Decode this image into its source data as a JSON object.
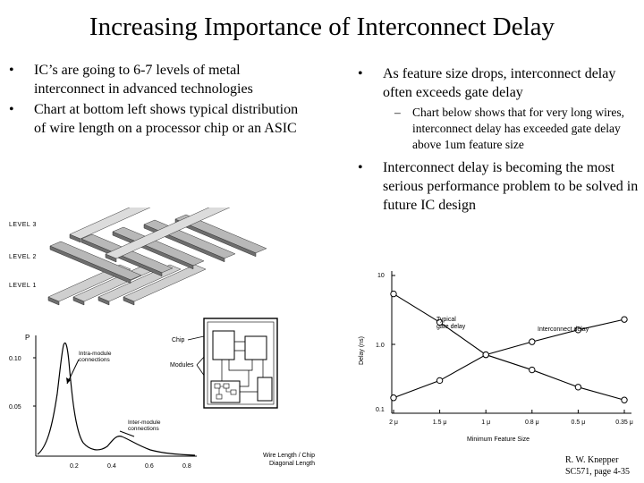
{
  "slide": {
    "title": "Increasing Importance of Interconnect Delay",
    "left_bullets": [
      "IC’s are going to 6-7 levels of metal interconnect in advanced technologies",
      "Chart at bottom left shows typical distribution of wire length on a processor chip or an ASIC"
    ],
    "right_bullet_1": "As feature size drops, interconnect delay often exceeds gate delay",
    "right_sub_1": "Chart below shows that for very long wires, interconnect delay has exceeded gate delay above 1um feature size",
    "right_bullet_2": "Interconnect delay is becoming the most serious performance problem to be solved in future IC design",
    "bullet_symbol": "•",
    "dash_symbol": "–"
  },
  "levels_figure": {
    "labels": [
      "LEVEL 3",
      "LEVEL 2",
      "LEVEL 1"
    ]
  },
  "distribution_chart": {
    "y_axis_label": "P",
    "y_ticks": [
      "0.10",
      "0.05"
    ],
    "x_ticks": [
      "0.2",
      "0.4",
      "0.6",
      "0.8"
    ],
    "x_axis_label_line1": "Wire Length / Chip",
    "x_axis_label_line2": "Diagonal Length",
    "annotation_intra_line1": "Intra-module",
    "annotation_intra_line2": "connections",
    "annotation_inter_line1": "Inter-module",
    "annotation_inter_line2": "connections"
  },
  "chip_diagram": {
    "chip_label": "Chip",
    "modules_label": "Modules"
  },
  "chart_data": {
    "type": "line",
    "categories": [
      "2 μ",
      "1.5 μ",
      "1 μ",
      "0.8 μ",
      "0.5 μ",
      "0.35 μ"
    ],
    "series": [
      {
        "name": "Typical gate delay",
        "values": [
          5.2,
          1.9,
          0.6,
          0.35,
          0.19,
          0.12
        ]
      },
      {
        "name": "Interconnect delay",
        "values": [
          0.13,
          0.24,
          0.6,
          0.95,
          1.45,
          2.1
        ]
      }
    ],
    "ylabel": "Delay (ns)",
    "xlabel": "Minimum Feature Size",
    "y_ticks": [
      "10",
      "1.0",
      "0.1"
    ],
    "ylim": [
      0.1,
      10
    ],
    "yscale": "log",
    "gate_label_line1": "Typical",
    "gate_label_line2": "gate delay",
    "interconnect_label": "Interconnect delay"
  },
  "footer": {
    "author": "R. W. Knepper",
    "course_page": "SC571, page 4-35"
  }
}
